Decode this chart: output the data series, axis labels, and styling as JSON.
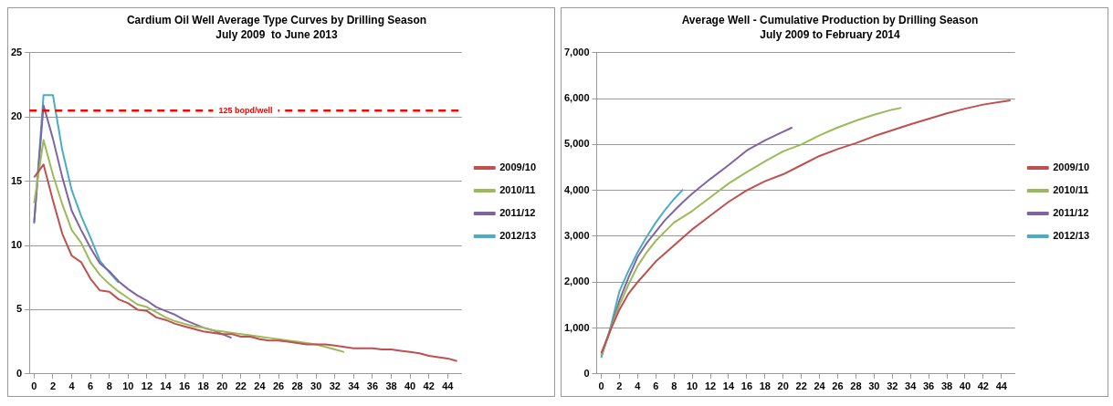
{
  "chart_data": [
    {
      "type": "line",
      "title": "Cardium Oil Well Average Type Curves by Drilling Season",
      "subtitle": "July 2009  to June 2013",
      "x": [
        0,
        1,
        2,
        3,
        4,
        5,
        6,
        7,
        8,
        9,
        10,
        11,
        12,
        13,
        14,
        15,
        16,
        17,
        18,
        19,
        20,
        21,
        22,
        23,
        24,
        25,
        26,
        27,
        28,
        29,
        30,
        31,
        32,
        33,
        34,
        35,
        36,
        37,
        38,
        39,
        40,
        41,
        42,
        43,
        44,
        45
      ],
      "xlim": [
        -0.5,
        45.5
      ],
      "xticks": [
        0,
        2,
        4,
        6,
        8,
        10,
        12,
        14,
        16,
        18,
        20,
        22,
        24,
        26,
        28,
        30,
        32,
        34,
        36,
        38,
        40,
        42,
        44
      ],
      "ylim": [
        0,
        25
      ],
      "yticks": [
        0,
        5,
        10,
        15,
        20,
        25
      ],
      "grid": "y",
      "legend": "right",
      "marker": "none",
      "line_style": "solid",
      "ref_lines": [
        {
          "axis": "y",
          "value": 20.5,
          "label": "125 bopd/well",
          "color": "#ff0000",
          "line_style": "dashed"
        }
      ],
      "series": [
        {
          "name": "2009/10",
          "color": "#c0504d",
          "values": [
            15.3,
            16.3,
            13.5,
            10.9,
            9.2,
            8.7,
            7.4,
            6.5,
            6.4,
            5.8,
            5.5,
            5.0,
            4.9,
            4.4,
            4.2,
            3.9,
            3.7,
            3.5,
            3.3,
            3.2,
            3.1,
            3.1,
            2.9,
            2.9,
            2.7,
            2.6,
            2.6,
            2.5,
            2.4,
            2.3,
            2.3,
            2.3,
            2.2,
            2.1,
            2.0,
            2.0,
            2.0,
            1.9,
            1.9,
            1.8,
            1.7,
            1.6,
            1.4,
            1.3,
            1.2,
            1.0
          ]
        },
        {
          "name": "2010/11",
          "color": "#9bbb59",
          "values": [
            13.3,
            18.2,
            15.5,
            13.2,
            11.2,
            10.2,
            8.7,
            7.7,
            7.0,
            6.4,
            5.9,
            5.4,
            5.2,
            4.8,
            4.4,
            4.1,
            3.9,
            3.7,
            3.6,
            3.4,
            3.3,
            3.2,
            3.1,
            3.0,
            2.9,
            2.8,
            2.7,
            2.6,
            2.5,
            2.4,
            2.3,
            2.1,
            1.9,
            1.7,
            null,
            null,
            null,
            null,
            null,
            null,
            null,
            null,
            null,
            null,
            null,
            null
          ]
        },
        {
          "name": "2011/12",
          "color": "#8064a2",
          "values": [
            11.8,
            20.9,
            18.3,
            15.3,
            12.7,
            11.2,
            9.8,
            8.6,
            8.0,
            7.2,
            6.6,
            6.1,
            5.7,
            5.2,
            4.9,
            4.6,
            4.2,
            3.9,
            3.6,
            3.4,
            3.1,
            2.8,
            null,
            null,
            null,
            null,
            null,
            null,
            null,
            null,
            null,
            null,
            null,
            null,
            null,
            null,
            null,
            null,
            null,
            null,
            null,
            null,
            null,
            null,
            null,
            null
          ]
        },
        {
          "name": "2012/13",
          "color": "#4bacc6",
          "values": [
            11.7,
            21.7,
            21.7,
            17.4,
            14.3,
            12.3,
            10.6,
            8.8,
            7.9,
            7.1,
            null,
            null,
            null,
            null,
            null,
            null,
            null,
            null,
            null,
            null,
            null,
            null,
            null,
            null,
            null,
            null,
            null,
            null,
            null,
            null,
            null,
            null,
            null,
            null,
            null,
            null,
            null,
            null,
            null,
            null,
            null,
            null,
            null,
            null,
            null,
            null
          ]
        }
      ]
    },
    {
      "type": "line",
      "title": "Average Well - Cumulative Production by Drilling Season",
      "subtitle": "July 2009 to February 2014",
      "xlim": [
        -0.5,
        45.5
      ],
      "xticks": [
        0,
        2,
        4,
        6,
        8,
        10,
        12,
        14,
        16,
        18,
        20,
        22,
        24,
        26,
        28,
        30,
        32,
        34,
        36,
        38,
        40,
        42,
        44
      ],
      "ylim": [
        0,
        7000
      ],
      "yticks": [
        {
          "value": 0,
          "label": "0"
        },
        {
          "value": 1000,
          "label": "1,000"
        },
        {
          "value": 2000,
          "label": "2,000"
        },
        {
          "value": 3000,
          "label": "3,000"
        },
        {
          "value": 4000,
          "label": "4,000"
        },
        {
          "value": 5000,
          "label": "5,000"
        },
        {
          "value": 6000,
          "label": "6,000"
        },
        {
          "value": 7000,
          "label": "7,000"
        }
      ],
      "grid": "y",
      "legend": "right",
      "marker": "none",
      "line_style": "solid",
      "series": [
        {
          "name": "2009/10",
          "color": "#c0504d",
          "x": [
            0,
            1,
            2,
            3,
            4,
            6,
            8,
            10,
            12,
            14,
            16,
            18,
            20,
            22,
            24,
            26,
            28,
            30,
            32,
            34,
            36,
            38,
            40,
            42,
            44,
            45
          ],
          "values": [
            450,
            950,
            1400,
            1750,
            2000,
            2450,
            2800,
            3150,
            3450,
            3750,
            4000,
            4200,
            4350,
            4550,
            4750,
            4900,
            5030,
            5180,
            5310,
            5440,
            5560,
            5680,
            5780,
            5870,
            5930,
            5960
          ]
        },
        {
          "name": "2010/11",
          "color": "#9bbb59",
          "x": [
            0,
            1,
            2,
            3,
            4,
            5,
            6,
            7,
            8,
            10,
            12,
            14,
            16,
            18,
            20,
            22,
            24,
            26,
            28,
            30,
            32,
            33
          ],
          "values": [
            400,
            950,
            1500,
            1950,
            2350,
            2650,
            2900,
            3100,
            3300,
            3550,
            3850,
            4150,
            4400,
            4630,
            4850,
            5000,
            5200,
            5370,
            5520,
            5650,
            5760,
            5800
          ]
        },
        {
          "name": "2011/12",
          "color": "#8064a2",
          "x": [
            0,
            1,
            2,
            3,
            4,
            5,
            6,
            7,
            8,
            9,
            10,
            12,
            14,
            16,
            18,
            20,
            21
          ],
          "values": [
            400,
            950,
            1600,
            2100,
            2550,
            2850,
            3100,
            3350,
            3550,
            3750,
            3930,
            4250,
            4550,
            4870,
            5090,
            5280,
            5370
          ]
        },
        {
          "name": "2012/13",
          "color": "#4bacc6",
          "x": [
            0,
            1,
            2,
            3,
            4,
            5,
            6,
            7,
            8,
            9
          ],
          "values": [
            350,
            1000,
            1800,
            2250,
            2650,
            2990,
            3300,
            3570,
            3810,
            4020
          ]
        }
      ]
    }
  ]
}
